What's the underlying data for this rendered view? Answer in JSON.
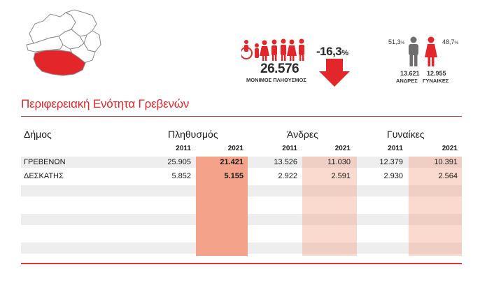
{
  "summary": {
    "total_population": "26.576",
    "total_population_label": "ΜΟΝΙΜΟΣ ΠΛΗΘΥΣΜΟΣ",
    "change_value": "-16,3",
    "change_unit": "%",
    "change_direction": "decrease",
    "men_share": "51,3",
    "women_share": "48,7",
    "share_unit": "%",
    "men_count": "13.621",
    "women_count": "12.955",
    "men_label": "ΑΝΔΡΕΣ",
    "women_label": "ΓΥΝΑΙΚΕΣ"
  },
  "colors": {
    "accent": "#e2262a",
    "population_column": "#f4a28a",
    "gender_columns": "#fad6cb",
    "stripe": "#eeeeee"
  },
  "icons": [
    "region-map-icon",
    "family-icon",
    "down-arrow-icon",
    "man-icon",
    "woman-icon"
  ],
  "region_title": "Περιφερειακή Ενότητα Γρεβενών",
  "table": {
    "headers": {
      "municipality": "Δήμος",
      "population": "Πληθυσμός",
      "men": "Άνδρες",
      "women": "Γυναίκες"
    },
    "years": [
      "2011",
      "2021",
      "2011",
      "2021",
      "2011",
      "2021"
    ],
    "rows": [
      {
        "name": "ΓΡΕΒΕΝΩΝ",
        "pop_2011": "25.905",
        "pop_2021": "21.421",
        "men_2011": "13.526",
        "men_2021": "11.030",
        "women_2011": "12.379",
        "women_2021": "10.391"
      },
      {
        "name": "ΔΕΣΚΑΤΗΣ",
        "pop_2011": "5.852",
        "pop_2021": "5.155",
        "men_2011": "2.922",
        "men_2021": "2.591",
        "women_2011": "2.930",
        "women_2021": "2.564"
      }
    ]
  }
}
